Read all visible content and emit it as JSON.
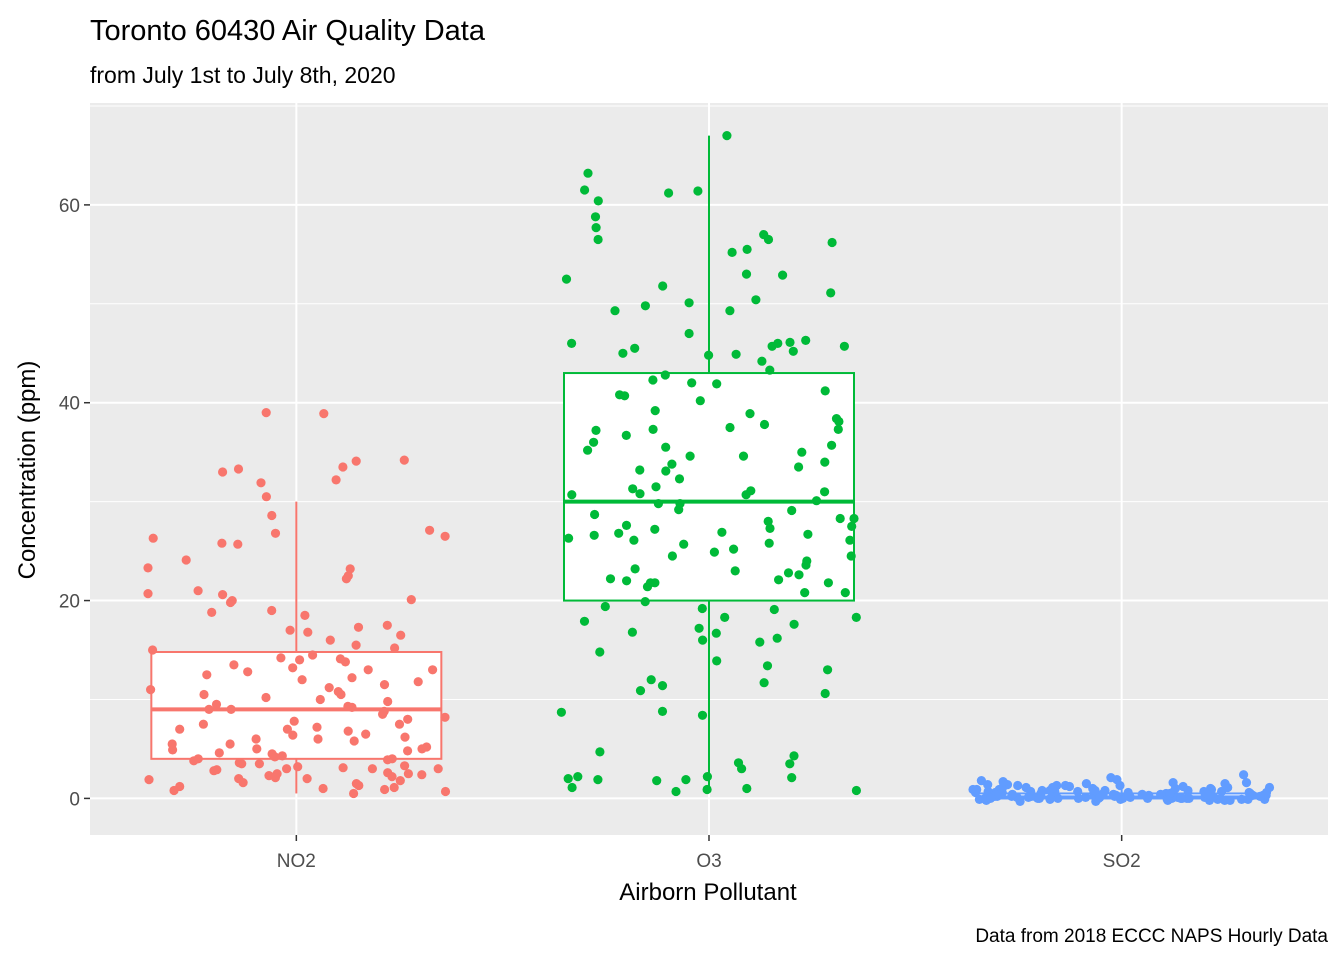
{
  "colors": {
    "panel": "#ebebeb",
    "grid": "#ffffff",
    "NO2": "#f8766d",
    "O3": "#00ba38",
    "SO2": "#619cff"
  },
  "chart_data": {
    "type": "boxplot",
    "title": "Toronto 60430 Air Quality Data",
    "subtitle": "from July 1st to July 8th, 2020",
    "xlabel": "Airborn Pollutant",
    "ylabel": "Concentration (ppm)",
    "caption": "Data from 2018 ECCC NAPS Hourly Data",
    "categories": [
      "NO2",
      "O3",
      "SO2"
    ],
    "ylim": [
      -3.7,
      70.3
    ],
    "y_ticks": [
      0,
      20,
      40,
      60
    ],
    "grid": true,
    "legend": "none",
    "boxes": [
      {
        "name": "NO2",
        "q1": 4,
        "median": 9,
        "q3": 14.8,
        "whisker_low": 0.5,
        "whisker_high": 30
      },
      {
        "name": "O3",
        "q1": 20,
        "median": 30,
        "q3": 43,
        "whisker_low": 1,
        "whisker_high": 67
      },
      {
        "name": "SO2",
        "q1": 0,
        "median": 0.1,
        "q3": 0.5,
        "whisker_low": 0,
        "whisker_high": 1
      }
    ],
    "jitter_points": {
      "NO2": [
        33.5,
        25.7,
        32.2,
        26.5,
        23.2,
        22.5,
        21,
        20.1,
        17.3,
        15.2,
        13,
        12.8,
        11.5,
        10.5,
        10,
        9.5,
        9,
        8.5,
        8,
        7.5,
        7,
        7,
        6.5,
        6,
        5.5,
        5,
        5,
        4.8,
        4.5,
        4.2,
        4,
        4,
        3.8,
        3.5,
        3.5,
        3.2,
        3,
        3,
        3,
        2.8,
        2.5,
        2.5,
        2.2,
        2,
        2,
        1.8,
        1.5,
        1.2,
        1,
        0.8,
        0.5,
        39,
        34.1,
        33,
        31.9,
        30.5,
        28.6,
        27.1,
        26.8,
        26.3,
        25.8,
        24.1,
        22.2,
        20.7,
        20,
        19.8,
        19,
        18.8,
        17.5,
        17,
        16.8,
        16.5,
        16,
        15.5,
        15,
        14.5,
        14.2,
        14,
        13.8,
        13.5,
        13.2,
        13,
        12.5,
        12,
        11.8,
        11.2,
        11,
        10.8,
        10.5,
        10.2,
        9.8,
        9.2,
        9,
        8.8,
        8.2,
        7.8,
        7.5,
        7.2,
        6.8,
        6.2,
        6,
        5.8,
        5.5,
        5.2,
        4.9,
        4.6,
        4.3,
        3.9,
        3.6,
        3.3,
        2.9,
        2.6,
        2.3,
        2.1,
        1.9,
        1.6,
        1.3,
        1.1,
        0.9,
        0.7,
        38.9,
        34.2,
        33.3,
        23.3,
        20.6,
        18.5,
        14.1,
        12.2,
        9.3,
        6.4,
        3.1,
        2.4
      ],
      "O3": [
        57,
        56.5,
        49.3,
        45,
        44.2,
        42,
        39.2,
        37.8,
        35.5,
        33.8,
        31.3,
        29.8,
        28.7,
        26.9,
        26.1,
        25.8,
        24.9,
        24,
        22.6,
        21.8,
        19.2,
        16,
        14.8,
        10.6,
        8.8,
        8.7,
        3,
        0.7,
        63.2,
        60.4,
        58.8,
        57.7,
        46.1,
        45.7,
        43.3,
        42.8,
        40.7,
        40.2,
        38.4,
        37.3,
        35.2,
        34,
        33.1,
        28.3,
        27.6,
        26.1,
        25.2,
        24.5,
        23.2,
        22.1,
        21.8,
        20.8,
        19.9,
        16.7,
        16.2,
        13.9,
        13.4,
        11.7,
        10.9,
        4.7,
        3.5,
        2,
        1.9,
        0.9,
        61.4,
        61.2,
        56.5,
        55.5,
        55.2,
        51.8,
        50.1,
        47,
        44.9,
        42.3,
        38.1,
        37.3,
        34.6,
        32.3,
        31,
        30.8,
        30.7,
        29.8,
        29.2,
        28.3,
        27.5,
        26.3,
        25.7,
        24.5,
        22.2,
        21.8,
        21.4,
        20.8,
        19.1,
        18.3,
        17.6,
        17.2,
        15.8,
        13,
        12,
        4.3,
        3.6,
        1,
        67,
        61.5,
        56.2,
        52.9,
        52.5,
        50.4,
        49.8,
        46.3,
        46,
        45.7,
        41.9,
        41.2,
        40.8,
        37.2,
        36.7,
        35.7,
        33.5,
        33.2,
        31.5,
        30.1,
        29.1,
        28,
        27.3,
        26.8,
        26.7,
        23.6,
        22.8,
        22,
        19.4,
        17.9,
        16.8,
        11.4,
        8.4,
        2.2,
        2.2,
        1.8,
        53,
        51.1,
        49.3,
        46,
        45.5,
        45.2,
        44.8,
        38.9,
        37.5,
        36,
        35,
        34.6,
        31.1,
        30.7,
        27.2,
        26.6,
        23,
        18.3,
        2.1,
        1.9,
        1.1,
        0.8
      ],
      "SO2": [
        1,
        0.9,
        0.8,
        0.7,
        0.6,
        0.5,
        0.5,
        0.4,
        0.3,
        0.2,
        0.2,
        0.1,
        0.1,
        0,
        0,
        0,
        0,
        -0.1,
        -0.2,
        -0.3,
        1.1,
        1.3,
        1.2,
        0.9,
        0.6,
        0.4,
        0.2,
        0,
        -0.1,
        -0.2,
        0.8,
        0.7,
        0.6,
        0.5,
        0.3,
        0.2,
        0.1,
        0,
        0,
        -0.1,
        2.4,
        2.1,
        1.8,
        1.6,
        1.4,
        1.3,
        1.1,
        1,
        0.8,
        0.7,
        0.6,
        0.5,
        0.4,
        0.3,
        0.2,
        0.1,
        0.1,
        0,
        0,
        0,
        -0.1,
        -0.2,
        -0.3,
        -0.2,
        -0.1,
        0,
        0.1,
        0.2,
        0.3,
        0.4,
        0.5,
        0.6,
        0.7,
        0.8,
        0.9,
        1.1,
        1.2,
        1.3,
        1.5,
        1.7,
        1.9,
        1.6,
        1.4,
        1.2,
        1,
        0.8,
        0.6,
        0.4,
        0.2,
        0,
        -0.1,
        -0.2,
        0.1,
        0.3,
        0.5,
        0.7,
        0.9,
        1.1,
        1.3,
        1.5,
        0,
        0.1,
        0.2,
        0,
        -0.1,
        0.4,
        0.6,
        0.3,
        0.2,
        0.1,
        0,
        0,
        -0.1,
        0.5,
        0.7,
        0.2
      ]
    }
  }
}
